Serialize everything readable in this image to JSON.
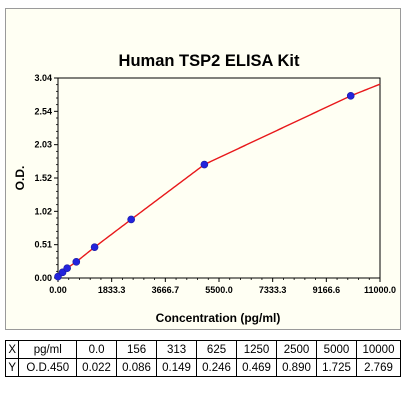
{
  "chart_data": {
    "type": "scatter",
    "title": "Human TSP2 ELISA Kit",
    "xlabel": "Concentration (pg/ml)",
    "ylabel": "O.D.",
    "xlim": [
      0,
      11000
    ],
    "ylim": [
      0,
      3.04
    ],
    "xticks": [
      "0.00",
      "1833.3",
      "3666.7",
      "5500.0",
      "7333.3",
      "9166.6",
      "11000.0"
    ],
    "yticks": [
      "0.00",
      "0.51",
      "1.02",
      "1.52",
      "2.03",
      "2.54",
      "3.04"
    ],
    "series": [
      {
        "x": [
          0,
          156,
          313,
          625,
          1250,
          2500,
          5000,
          10000
        ],
        "y": [
          0.022,
          0.086,
          0.149,
          0.246,
          0.469,
          0.89,
          1.725,
          2.769
        ]
      }
    ],
    "fit_curve": "red",
    "point_color": "#2323dc",
    "curve_color": "#e8181b"
  },
  "table": {
    "rows": [
      {
        "label": "X",
        "unit": "pg/ml",
        "values": [
          "0.0",
          "156",
          "313",
          "625",
          "1250",
          "2500",
          "5000",
          "10000"
        ]
      },
      {
        "label": "Y",
        "unit": "O.D.450",
        "values": [
          "0.022",
          "0.086",
          "0.149",
          "0.246",
          "0.469",
          "0.890",
          "1.725",
          "2.769"
        ]
      }
    ]
  }
}
